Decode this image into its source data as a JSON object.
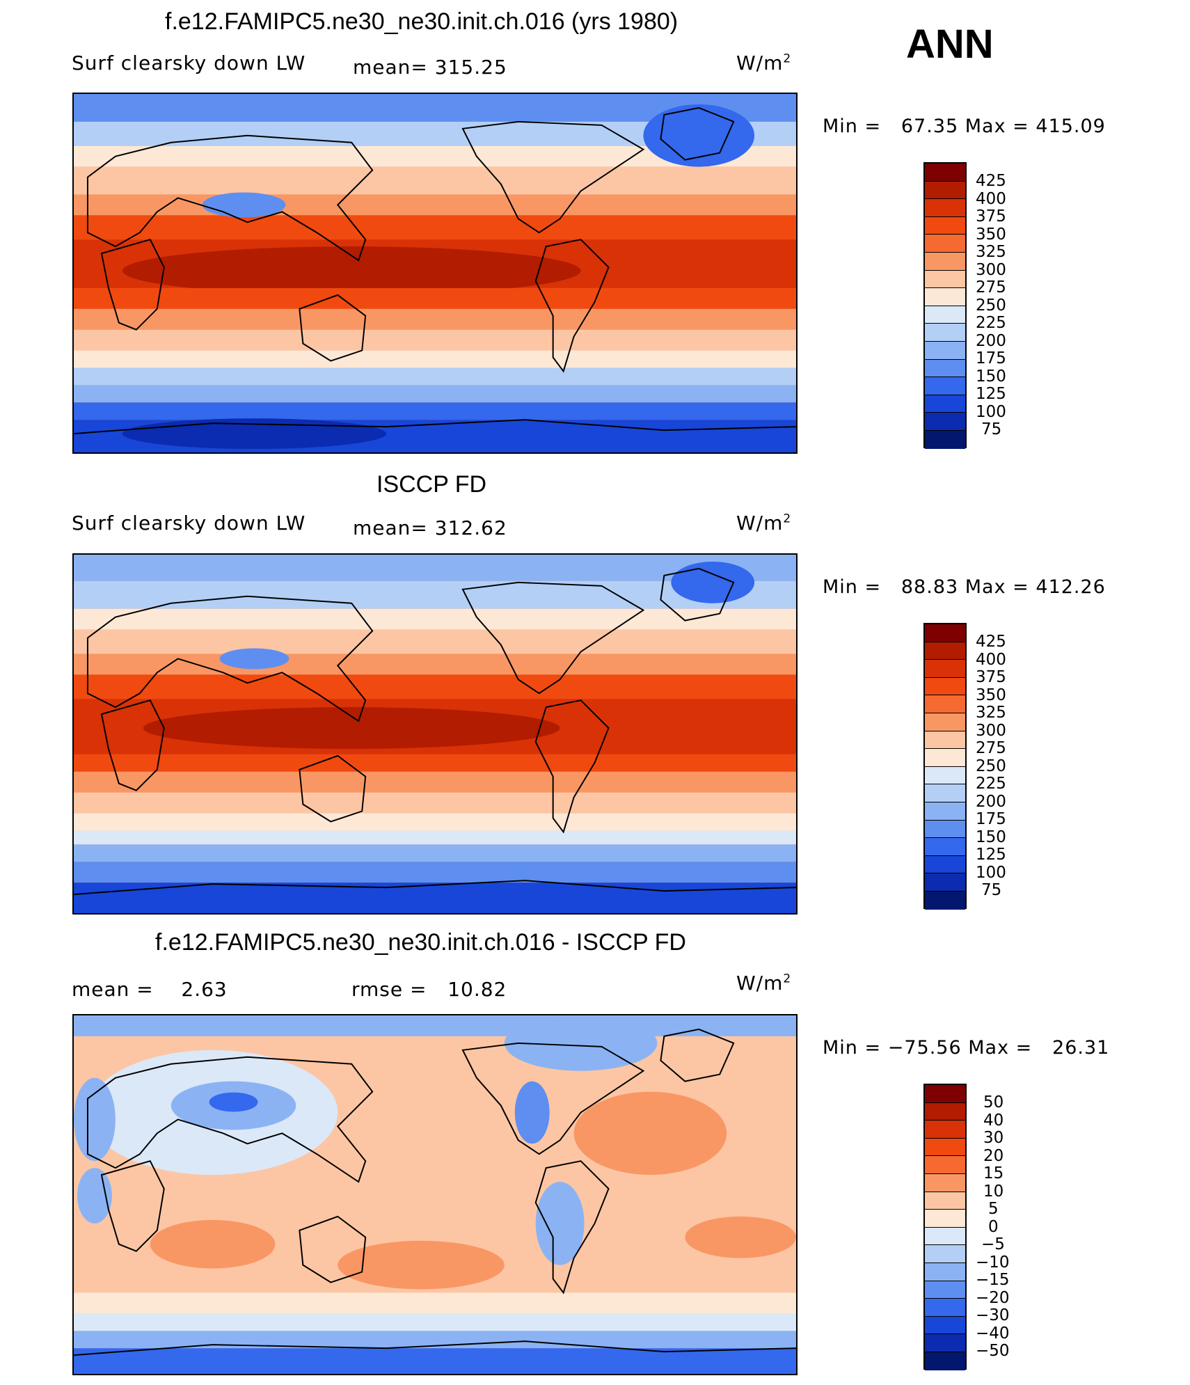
{
  "season": "ANN",
  "units_base": "W/m",
  "units_exp": "2",
  "panels": [
    {
      "title": "f.e12.FAMIPC5.ne30_ne30.init.ch.016 (yrs 1980)",
      "variable": "Surf clearsky down LW",
      "stat_label": "mean=",
      "stat_value": "315.25",
      "min_label": "Min =",
      "min_value": "67.35",
      "max_label": "Max =",
      "max_value": "415.09"
    },
    {
      "title": "ISCCP FD",
      "variable": "Surf clearsky down LW",
      "stat_label": "mean=",
      "stat_value": "312.62",
      "min_label": "Min =",
      "min_value": "88.83",
      "max_label": "Max =",
      "max_value": "412.26"
    },
    {
      "title": "f.e12.FAMIPC5.ne30_ne30.init.ch.016 - ISCCP FD",
      "stat_label": "mean =",
      "stat_value": "2.63",
      "rmse_label": "rmse =",
      "rmse_value": "10.82",
      "min_label": "Min =",
      "min_value": "−75.56",
      "max_label": "Max =",
      "max_value": "26.31"
    }
  ],
  "colorbar_levels": [
    "425",
    "400",
    "375",
    "350",
    "325",
    "300",
    "275",
    "250",
    "225",
    "200",
    "175",
    "150",
    "125",
    "100",
    "75"
  ],
  "colorbar_diff_levels": [
    "50",
    "40",
    "30",
    "20",
    "15",
    "10",
    "5",
    "0",
    "−5",
    "−10",
    "−15",
    "−20",
    "−30",
    "−40",
    "−50"
  ],
  "palette": [
    "#7f0000",
    "#b21c00",
    "#d93206",
    "#f04a10",
    "#f66a32",
    "#f99764",
    "#fcc6a4",
    "#fde8d6",
    "#dbe8f8",
    "#b3cff6",
    "#8bb3f3",
    "#5e8ff0",
    "#3468ed",
    "#1846d8",
    "#0b2cb0",
    "#03176e"
  ]
}
